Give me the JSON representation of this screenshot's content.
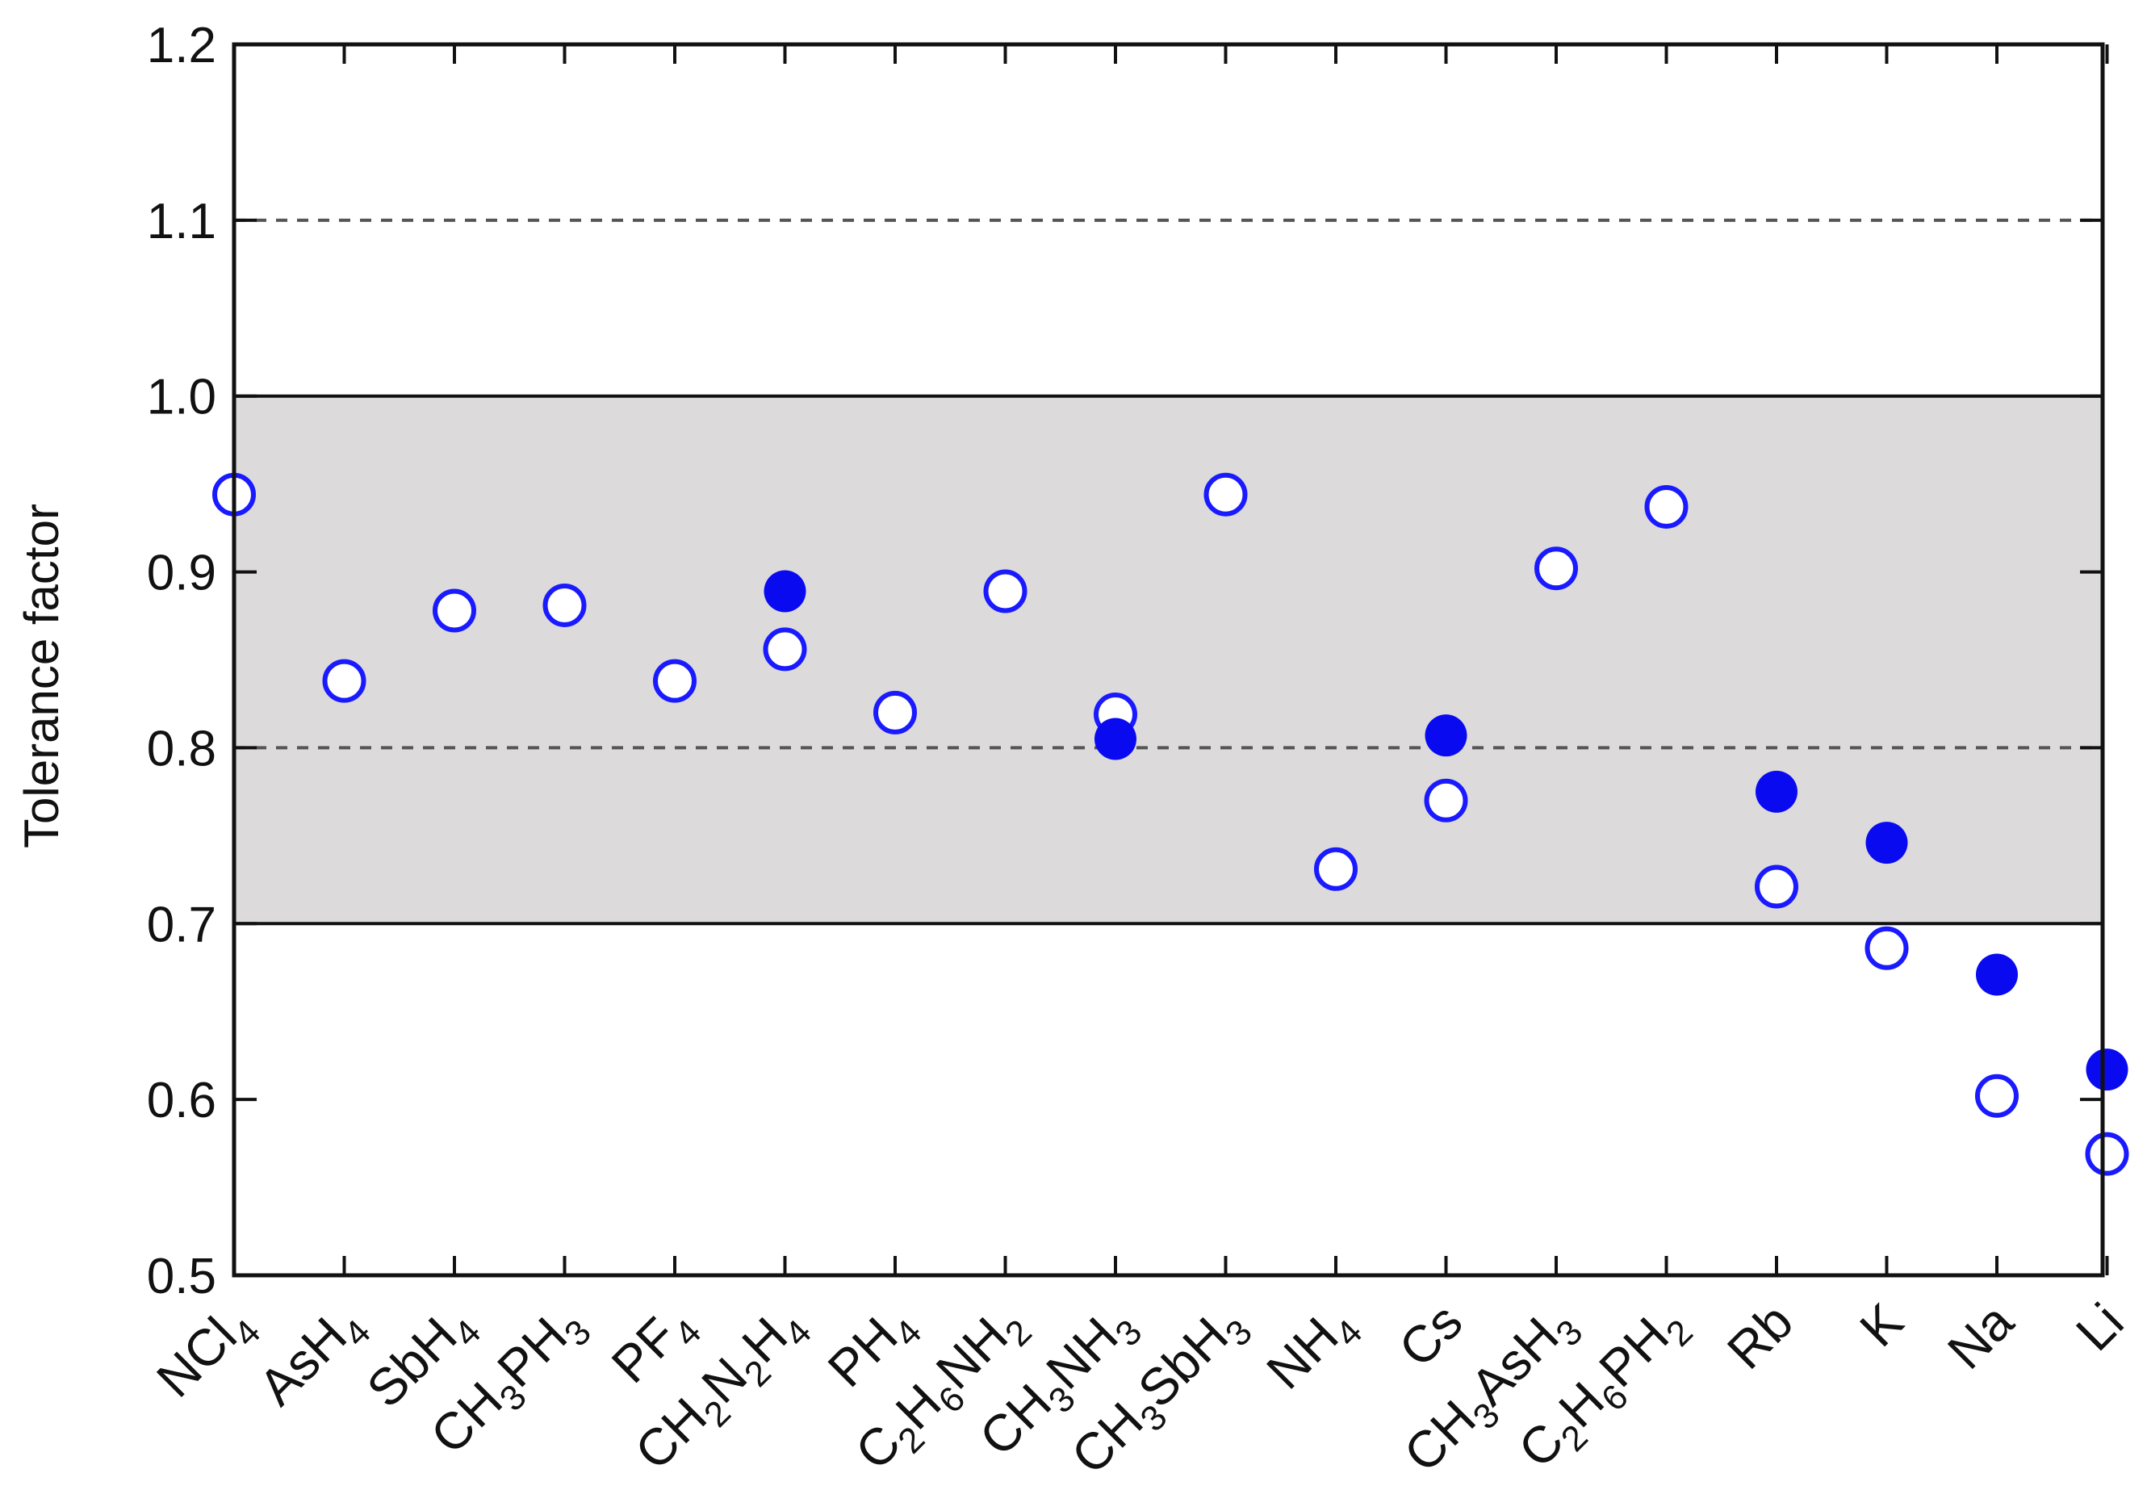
{
  "chart_data": {
    "type": "scatter",
    "title": "",
    "xlabel": "",
    "ylabel": "Tolerance factor",
    "ylim": [
      0.5,
      1.2
    ],
    "yticks": [
      "0.5",
      "0.6",
      "0.7",
      "0.8",
      "0.9",
      "1.0",
      "1.1",
      "1.2"
    ],
    "shaded_band": [
      0.7,
      1.0
    ],
    "reference_lines": [
      0.8,
      1.1
    ],
    "grid": false,
    "categories": [
      {
        "parts": [
          {
            "t": "NCl"
          },
          {
            "t": "4",
            "sub": true
          }
        ]
      },
      {
        "parts": [
          {
            "t": "AsH"
          },
          {
            "t": "4",
            "sub": true
          }
        ]
      },
      {
        "parts": [
          {
            "t": "SbH"
          },
          {
            "t": "4",
            "sub": true
          }
        ]
      },
      {
        "parts": [
          {
            "t": "CH"
          },
          {
            "t": "3",
            "sub": true
          },
          {
            "t": "PH"
          },
          {
            "t": "3",
            "sub": true
          }
        ]
      },
      {
        "parts": [
          {
            "t": "PF"
          },
          {
            "t": "4",
            "sub": true
          }
        ]
      },
      {
        "parts": [
          {
            "t": "CH"
          },
          {
            "t": "2",
            "sub": true
          },
          {
            "t": "N"
          },
          {
            "t": "2",
            "sub": true
          },
          {
            "t": "H"
          },
          {
            "t": "4",
            "sub": true
          }
        ]
      },
      {
        "parts": [
          {
            "t": "PH"
          },
          {
            "t": "4",
            "sub": true
          }
        ]
      },
      {
        "parts": [
          {
            "t": "C"
          },
          {
            "t": "2",
            "sub": true
          },
          {
            "t": "H"
          },
          {
            "t": "6",
            "sub": true
          },
          {
            "t": "NH"
          },
          {
            "t": "2",
            "sub": true
          }
        ]
      },
      {
        "parts": [
          {
            "t": "CH"
          },
          {
            "t": "3",
            "sub": true
          },
          {
            "t": "NH"
          },
          {
            "t": "3",
            "sub": true
          }
        ]
      },
      {
        "parts": [
          {
            "t": "CH"
          },
          {
            "t": "3",
            "sub": true
          },
          {
            "t": "SbH"
          },
          {
            "t": "3",
            "sub": true
          }
        ]
      },
      {
        "parts": [
          {
            "t": "NH"
          },
          {
            "t": "4",
            "sub": true
          }
        ]
      },
      {
        "parts": [
          {
            "t": "Cs"
          }
        ]
      },
      {
        "parts": [
          {
            "t": "CH"
          },
          {
            "t": "3",
            "sub": true
          },
          {
            "t": "AsH"
          },
          {
            "t": "3",
            "sub": true
          }
        ]
      },
      {
        "parts": [
          {
            "t": "C"
          },
          {
            "t": "2",
            "sub": true
          },
          {
            "t": "H"
          },
          {
            "t": "6",
            "sub": true
          },
          {
            "t": "PH"
          },
          {
            "t": "2",
            "sub": true
          }
        ]
      },
      {
        "parts": [
          {
            "t": "Rb"
          }
        ]
      },
      {
        "parts": [
          {
            "t": "K"
          }
        ]
      },
      {
        "parts": [
          {
            "t": "Na"
          }
        ]
      },
      {
        "parts": [
          {
            "t": "Li"
          }
        ]
      }
    ],
    "series": [
      {
        "marker": "open-circle",
        "color": "#1a1aff",
        "values": [
          0.944,
          0.838,
          0.878,
          0.881,
          0.838,
          0.856,
          0.82,
          0.889,
          0.819,
          0.944,
          0.731,
          0.77,
          0.902,
          0.937,
          0.721,
          0.686,
          0.602,
          0.569
        ]
      },
      {
        "marker": "filled-circle",
        "color": "#0a0af0",
        "values": [
          null,
          null,
          null,
          null,
          null,
          0.889,
          null,
          null,
          0.805,
          null,
          null,
          0.807,
          null,
          null,
          0.775,
          0.746,
          0.671,
          0.617
        ]
      }
    ],
    "colors": {
      "band": "#dcdadb",
      "axis": "#111111",
      "reference_line": "#555555"
    }
  }
}
